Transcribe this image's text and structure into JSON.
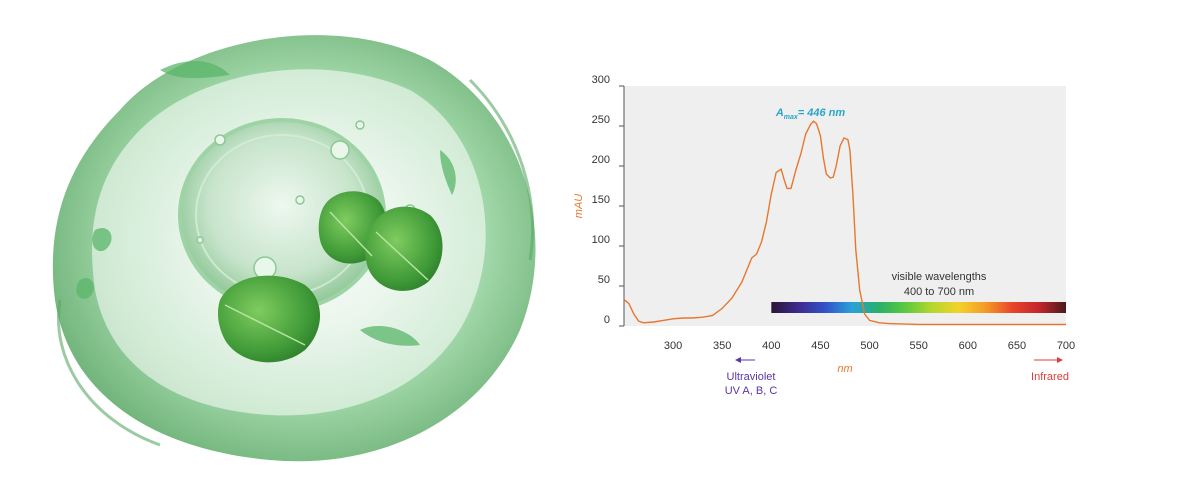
{
  "chart_data": {
    "type": "line",
    "ylabel": "mAU",
    "xlabel": "nm",
    "xlim": [
      250,
      700
    ],
    "ylim": [
      0,
      300
    ],
    "x_ticks": [
      300,
      350,
      400,
      450,
      500,
      550,
      600,
      650,
      700
    ],
    "y_ticks": [
      0,
      50,
      100,
      150,
      200,
      250,
      300
    ],
    "grid": false,
    "series": [
      {
        "color": "#e8772e",
        "x": [
          250,
          255,
          260,
          265,
          270,
          280,
          290,
          300,
          310,
          320,
          330,
          340,
          350,
          360,
          370,
          375,
          380,
          385,
          390,
          395,
          400,
          405,
          410,
          413,
          416,
          420,
          425,
          430,
          435,
          440,
          443,
          446,
          450,
          453,
          456,
          460,
          463,
          466,
          470,
          474,
          478,
          480,
          483,
          486,
          490,
          495,
          500,
          510,
          520,
          550,
          600,
          650,
          700
        ],
        "y": [
          33,
          28,
          15,
          6,
          4,
          5,
          7,
          9,
          10,
          10,
          11,
          13,
          22,
          35,
          55,
          70,
          85,
          90,
          105,
          130,
          165,
          192,
          196,
          183,
          172,
          172,
          195,
          215,
          240,
          252,
          256,
          253,
          238,
          210,
          190,
          185,
          186,
          200,
          225,
          235,
          233,
          220,
          165,
          95,
          45,
          15,
          7,
          4,
          3,
          2,
          2,
          2,
          2
        ]
      }
    ],
    "annotations": {
      "lambda_max": {
        "symbol": "A",
        "subscript": "max",
        "text": "= 446 nm",
        "x": 446,
        "color": "#2aa6c9"
      },
      "visible": {
        "line1": "visible wavelengths",
        "line2": "400 to 700 nm",
        "x_start": 400,
        "x_end": 700
      },
      "uv": {
        "line1": "Ultraviolet",
        "line2": "UV A, B, C",
        "color": "#5a35a6"
      },
      "ir": {
        "text": "Infrared",
        "color": "#e03b3b"
      }
    },
    "spectrum_colors": [
      "#2a1638",
      "#3e2a8c",
      "#3252c8",
      "#2aa1d9",
      "#27b06a",
      "#5cc93e",
      "#b5d62e",
      "#f2d22a",
      "#f59a28",
      "#e8452a",
      "#c2262a",
      "#4a1a1a"
    ]
  }
}
